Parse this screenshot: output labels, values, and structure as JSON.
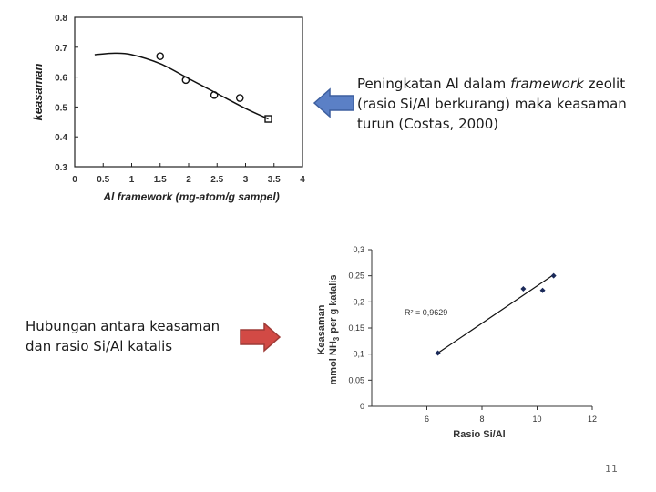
{
  "chart_data": [
    {
      "type": "scatter",
      "xlabel": "Al framework (mg-atom/g sampel)",
      "ylabel": "keasaman",
      "xlim": [
        0,
        4
      ],
      "ylim": [
        0.3,
        0.8
      ],
      "xticks": [
        "0",
        "0.5",
        "1",
        "1.5",
        "2",
        "2.5",
        "3",
        "3.5",
        "4"
      ],
      "yticks": [
        "0.3",
        "0.4",
        "0.5",
        "0.6",
        "0.7",
        "0.8"
      ],
      "points": [
        {
          "x": 1.5,
          "y": 0.67
        },
        {
          "x": 1.95,
          "y": 0.59
        },
        {
          "x": 2.45,
          "y": 0.54
        },
        {
          "x": 2.9,
          "y": 0.53
        },
        {
          "x": 3.4,
          "y": 0.46
        }
      ],
      "fit_curve": [
        {
          "x": 0.35,
          "y": 0.675
        },
        {
          "x": 0.7,
          "y": 0.68
        },
        {
          "x": 1.0,
          "y": 0.675
        },
        {
          "x": 1.5,
          "y": 0.645
        },
        {
          "x": 2.0,
          "y": 0.595
        },
        {
          "x": 2.5,
          "y": 0.545
        },
        {
          "x": 3.0,
          "y": 0.495
        },
        {
          "x": 3.4,
          "y": 0.46
        }
      ],
      "fit_type": "curve",
      "grid": false
    },
    {
      "type": "scatter",
      "xlabel": "Rasio Si/Al",
      "ylabel_lines": [
        "Keasaman",
        "mmol NH",
        "3",
        "per g katalis"
      ],
      "xlim": [
        4,
        12
      ],
      "ylim": [
        0,
        0.3
      ],
      "xticks": [
        "6",
        "8",
        "10",
        "12"
      ],
      "yticks": [
        "0",
        "0,05",
        "0,1",
        "0,15",
        "0,2",
        "0,25",
        "0,3"
      ],
      "points": [
        {
          "x": 6.4,
          "y": 0.102
        },
        {
          "x": 9.5,
          "y": 0.225
        },
        {
          "x": 10.2,
          "y": 0.222
        },
        {
          "x": 10.6,
          "y": 0.25
        }
      ],
      "trendline": [
        {
          "x": 6.4,
          "y": 0.102
        },
        {
          "x": 10.6,
          "y": 0.252
        }
      ],
      "annotation": "R² = 0,9629",
      "grid": false
    }
  ],
  "notes": {
    "top_line1_pre": "Peningkatan Al dalam ",
    "top_line1_em": "framework",
    "top_line1_post": " zeolit",
    "top_line2": "(rasio Si/Al berkurang) maka keasaman",
    "top_line3": "turun (Costas, 2000)",
    "bottom_line1": "Hubungan antara keasaman",
    "bottom_line2": "dan rasio Si/Al katalis"
  },
  "arrows": {
    "left_arrow_color": "#5b80c6",
    "right_arrow_color": "#d24a45"
  },
  "page_number": "11"
}
